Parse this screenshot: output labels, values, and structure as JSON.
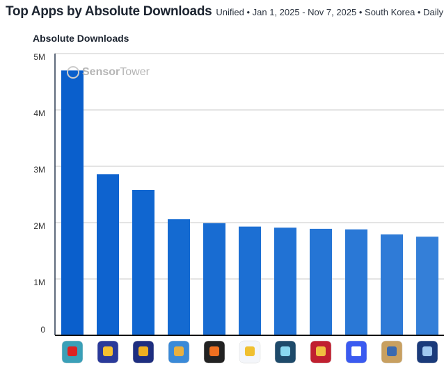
{
  "header": {
    "title": "Top Apps by Absolute Downloads",
    "subtitle": "Unified • Jan 1, 2025 - Nov 7, 2025 • South Korea • Daily"
  },
  "watermark": {
    "bold": "Sensor",
    "light": "Tower"
  },
  "chart_data": {
    "type": "bar",
    "title": "Absolute Downloads",
    "xlabel": "",
    "ylabel": "",
    "ylim": [
      0,
      5000000
    ],
    "yticks": [
      {
        "v": 0,
        "label": "0"
      },
      {
        "v": 1000000,
        "label": "1M"
      },
      {
        "v": 2000000,
        "label": "2M"
      },
      {
        "v": 3000000,
        "label": "3M"
      },
      {
        "v": 4000000,
        "label": "4M"
      },
      {
        "v": 5000000,
        "label": "5M"
      }
    ],
    "grid": true,
    "categories": [
      "app-icon-1",
      "app-icon-2",
      "app-icon-3",
      "app-icon-4",
      "app-icon-5",
      "app-icon-6",
      "app-icon-7",
      "app-icon-8",
      "app-icon-9",
      "app-icon-10",
      "app-icon-11"
    ],
    "values": [
      4700000,
      2860000,
      2580000,
      2060000,
      1990000,
      1930000,
      1910000,
      1890000,
      1880000,
      1790000,
      1750000
    ],
    "bar_colors": [
      "#0a5fcc",
      "#0e63cf",
      "#1066d0",
      "#146ad1",
      "#186cd2",
      "#1c6fd3",
      "#2172d4",
      "#2575d5",
      "#2a78d6",
      "#2f7bd7",
      "#347fd8"
    ],
    "icon_colors": [
      [
        "#3aa0b8",
        "#d22"
      ],
      [
        "#2a3a9a",
        "#f5c030"
      ],
      [
        "#1e2e80",
        "#f0b020"
      ],
      [
        "#3a8ad8",
        "#e8b040"
      ],
      [
        "#222222",
        "#f07020"
      ],
      [
        "#f4f6fa",
        "#f0c030"
      ],
      [
        "#1e4a6a",
        "#8ad8f0"
      ],
      [
        "#c02030",
        "#f0c040"
      ],
      [
        "#3a5af0",
        "#ffffff"
      ],
      [
        "#c8a060",
        "#3a6ab0"
      ],
      [
        "#1a3a7a",
        "#a0c8f0"
      ]
    ]
  }
}
